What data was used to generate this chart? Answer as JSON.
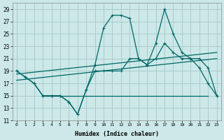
{
  "xlabel": "Humidex (Indice chaleur)",
  "bg_color": "#cce8e8",
  "grid_color": "#aacccc",
  "line_color": "#006666",
  "xlim": [
    -0.5,
    23.5
  ],
  "ylim": [
    11,
    30
  ],
  "yticks": [
    11,
    13,
    15,
    17,
    19,
    21,
    23,
    25,
    27,
    29
  ],
  "xticks": [
    0,
    1,
    2,
    3,
    4,
    5,
    6,
    7,
    8,
    9,
    10,
    11,
    12,
    13,
    14,
    15,
    16,
    17,
    18,
    19,
    20,
    21,
    22,
    23
  ],
  "series": [
    {
      "x": [
        0,
        1,
        2,
        3,
        4,
        5,
        6,
        7,
        8,
        9,
        10,
        11,
        12,
        13,
        14,
        15,
        16,
        17,
        18,
        19,
        20,
        21,
        22,
        23
      ],
      "y": [
        19,
        18,
        17,
        15,
        15,
        15,
        14,
        12,
        16,
        20,
        26,
        28,
        28,
        27.5,
        21,
        20,
        23.5,
        29,
        25,
        22,
        21,
        19.5,
        17,
        15
      ],
      "marker": true
    },
    {
      "x": [
        0,
        1,
        2,
        3,
        4,
        5,
        6,
        7,
        8,
        9,
        10,
        11,
        12,
        13,
        14,
        15,
        16,
        17,
        18,
        19,
        20,
        21,
        22,
        23
      ],
      "y": [
        19,
        18,
        17,
        15,
        15,
        15,
        14,
        12,
        16,
        19,
        19,
        19,
        19,
        21,
        21,
        20,
        21,
        23.5,
        22,
        21,
        21,
        21,
        19.5,
        15
      ],
      "marker": true
    },
    {
      "x": [
        3,
        5,
        14,
        22
      ],
      "y": [
        15,
        15,
        15,
        15
      ],
      "marker": false
    },
    {
      "x": [
        0,
        23
      ],
      "y": [
        17.5,
        21
      ],
      "marker": false
    },
    {
      "x": [
        0,
        23
      ],
      "y": [
        18.5,
        22
      ],
      "marker": false
    }
  ]
}
